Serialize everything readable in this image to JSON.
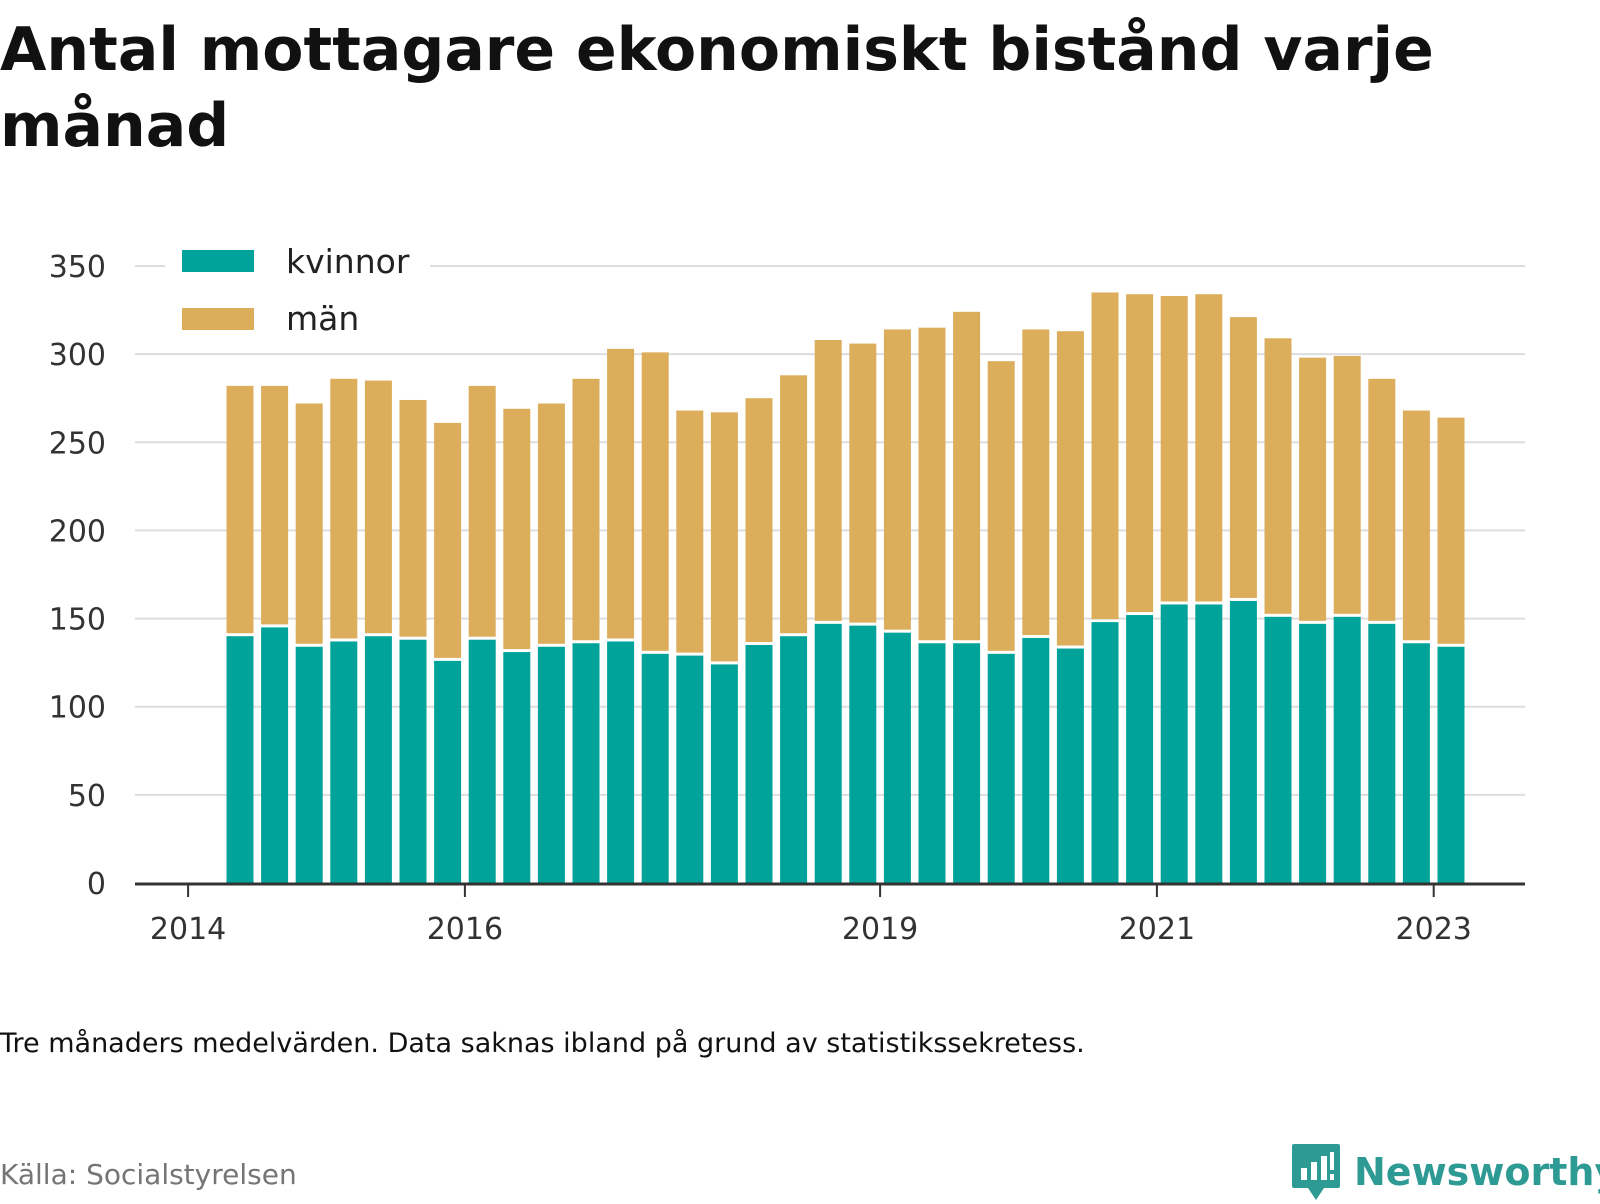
{
  "title": "Antal mottagare ekonomiskt bistånd varje månad",
  "note": "Tre månaders medelvärden. Data saknas ibland på grund av statistikssekretess.",
  "source": "Källa: Socialstyrelsen",
  "brand": {
    "name": "Newsworthy"
  },
  "colors": {
    "kvinnor": "#00a39a",
    "man": "#dcad5a",
    "grid": "#dddddd",
    "axis": "#333333"
  },
  "chart_data": {
    "type": "bar",
    "stacked": true,
    "ylim": [
      0,
      350
    ],
    "y_ticks": [
      0,
      50,
      100,
      150,
      200,
      250,
      300,
      350
    ],
    "x_tick_labels": [
      {
        "label": "2014",
        "index": -1
      },
      {
        "label": "2016",
        "index": 7
      },
      {
        "label": "2019",
        "index": 19
      },
      {
        "label": "2021",
        "index": 27
      },
      {
        "label": "2023",
        "index": 35
      }
    ],
    "legend": {
      "position": "top-left"
    },
    "series": [
      {
        "name": "kvinnor",
        "color": "#00a39a",
        "values": [
          140,
          145,
          134,
          137,
          140,
          138,
          126,
          138,
          131,
          134,
          136,
          137,
          130,
          129,
          124,
          135,
          140,
          147,
          146,
          142,
          136,
          136,
          130,
          139,
          133,
          148,
          152,
          158,
          158,
          160,
          151,
          147,
          151,
          147,
          136,
          134
        ]
      },
      {
        "name": "män",
        "color": "#dcad5a",
        "values": [
          142,
          137,
          138,
          149,
          145,
          136,
          135,
          144,
          138,
          138,
          150,
          166,
          171,
          139,
          143,
          140,
          148,
          161,
          160,
          172,
          179,
          188,
          166,
          175,
          180,
          187,
          182,
          175,
          176,
          161,
          158,
          151,
          148,
          139,
          132,
          130
        ]
      }
    ]
  }
}
